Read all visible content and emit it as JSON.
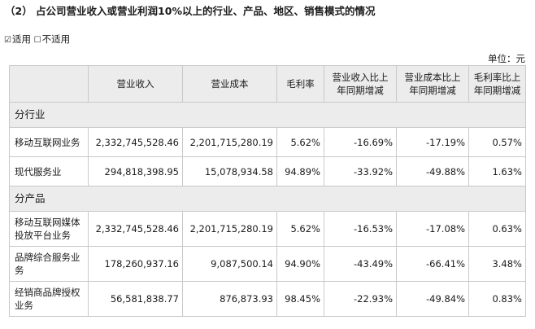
{
  "heading": "（2） 占公司营业收入或营业利润10%以上的行业、产品、地区、销售模式的情况",
  "applicability": {
    "applicable_box": "☑",
    "applicable": "适用",
    "not_applicable_box": "☐",
    "not_applicable": "不适用"
  },
  "unit": "单位：元",
  "table": {
    "headers": [
      "",
      "营业收入",
      "营业成本",
      "毛利率",
      "营业收入比上年同期增减",
      "营业成本比上年同期增减",
      "毛利率比上年同期增减"
    ],
    "sections": [
      {
        "title": "分行业",
        "rows": [
          {
            "name": "移动互联网业务",
            "revenue": "2,332,745,528.46",
            "cost": "2,201,715,280.19",
            "margin": "5.62%",
            "rev_change": "-16.69%",
            "cost_change": "-17.19%",
            "margin_change": "0.57%"
          },
          {
            "name": "现代服务业",
            "revenue": "294,818,398.95",
            "cost": "15,078,934.58",
            "margin": "94.89%",
            "rev_change": "-33.92%",
            "cost_change": "-49.88%",
            "margin_change": "1.63%"
          }
        ]
      },
      {
        "title": "分产品",
        "rows": [
          {
            "name": "移动互联网媒体投放平台业务",
            "revenue": "2,332,745,528.46",
            "cost": "2,201,715,280.19",
            "margin": "5.62%",
            "rev_change": "-16.53%",
            "cost_change": "-17.08%",
            "margin_change": "0.63%"
          },
          {
            "name": "品牌综合服务业务",
            "revenue": "178,260,937.16",
            "cost": "9,087,500.14",
            "margin": "94.90%",
            "rev_change": "-43.49%",
            "cost_change": "-66.41%",
            "margin_change": "3.48%"
          },
          {
            "name": "经销商品牌授权业务",
            "revenue": "56,581,838.77",
            "cost": "876,873.93",
            "margin": "98.45%",
            "rev_change": "-22.93%",
            "cost_change": "-49.84%",
            "margin_change": "0.83%"
          }
        ]
      }
    ]
  }
}
